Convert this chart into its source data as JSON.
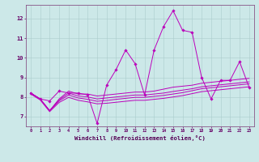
{
  "background_color": "#cce8e8",
  "grid_color": "#aacccc",
  "line_color": "#bb00bb",
  "xlim": [
    -0.5,
    23.5
  ],
  "ylim": [
    6.5,
    12.7
  ],
  "yticks": [
    7,
    8,
    9,
    10,
    11,
    12
  ],
  "xticks": [
    0,
    1,
    2,
    3,
    4,
    5,
    6,
    7,
    8,
    9,
    10,
    11,
    12,
    13,
    14,
    15,
    16,
    17,
    18,
    19,
    20,
    21,
    22,
    23
  ],
  "xlabel": "Windchill (Refroidissement éolien,°C)",
  "lines": [
    [
      8.2,
      7.9,
      7.8,
      8.3,
      8.2,
      8.2,
      8.1,
      6.65,
      8.6,
      9.4,
      10.4,
      9.7,
      8.1,
      10.4,
      11.6,
      12.4,
      11.4,
      11.3,
      9.0,
      7.9,
      8.85,
      8.85,
      9.8,
      8.5
    ],
    [
      8.2,
      7.9,
      7.3,
      7.9,
      8.3,
      8.15,
      8.15,
      8.05,
      8.1,
      8.15,
      8.2,
      8.25,
      8.25,
      8.3,
      8.4,
      8.5,
      8.55,
      8.6,
      8.7,
      8.75,
      8.8,
      8.85,
      8.9,
      8.95
    ],
    [
      8.2,
      7.9,
      7.3,
      7.85,
      8.2,
      8.05,
      8.0,
      7.9,
      7.95,
      8.0,
      8.05,
      8.1,
      8.1,
      8.15,
      8.2,
      8.28,
      8.35,
      8.42,
      8.52,
      8.57,
      8.62,
      8.67,
      8.72,
      8.77
    ],
    [
      8.2,
      7.9,
      7.3,
      7.8,
      8.1,
      7.95,
      7.88,
      7.78,
      7.82,
      7.88,
      7.93,
      7.98,
      7.98,
      8.03,
      8.08,
      8.15,
      8.22,
      8.32,
      8.42,
      8.47,
      8.52,
      8.57,
      8.62,
      8.67
    ],
    [
      8.15,
      7.85,
      7.25,
      7.72,
      7.98,
      7.83,
      7.75,
      7.65,
      7.68,
      7.73,
      7.78,
      7.83,
      7.83,
      7.88,
      7.93,
      8.0,
      8.07,
      8.17,
      8.27,
      8.32,
      8.37,
      8.42,
      8.47,
      8.52
    ]
  ],
  "figsize": [
    3.2,
    2.0
  ],
  "dpi": 100
}
